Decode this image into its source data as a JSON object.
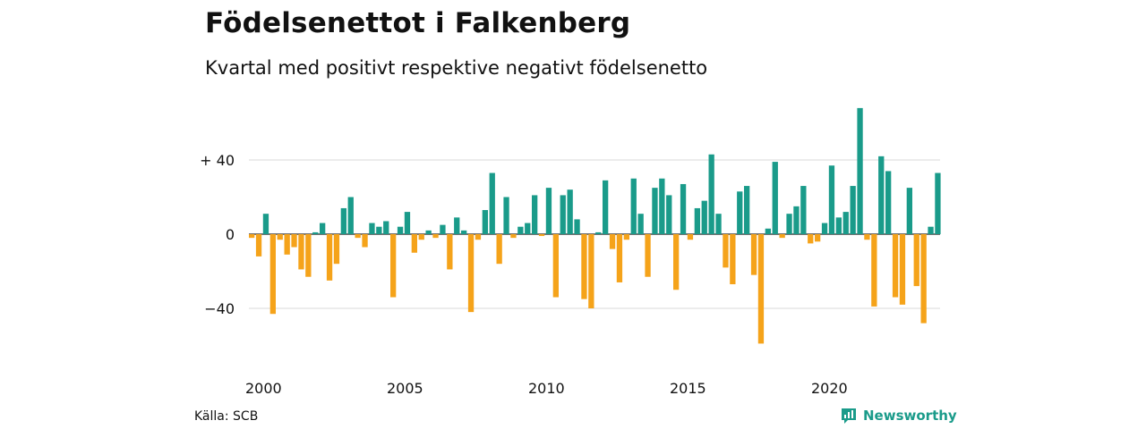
{
  "header": {
    "title": "Födelsenettot i Falkenberg",
    "subtitle": "Kvartal med positivt respektive negativt födelsenetto"
  },
  "footer": {
    "source": "Källa: SCB",
    "brand": "Newsworthy"
  },
  "colors": {
    "positive": "#1a9b8a",
    "negative": "#f5a31a",
    "brand": "#1a9b8a"
  },
  "chart_data": {
    "type": "bar",
    "title": "Födelsenettot i Falkenberg",
    "subtitle": "Kvartal med positivt respektive negativt födelsenetto",
    "x_start": 2000.0,
    "x_step": 0.25,
    "ylim": [
      -60,
      68
    ],
    "y_ticks": [
      40,
      0,
      -40
    ],
    "y_tick_labels": [
      "+ 40",
      "0",
      "−40"
    ],
    "x_ticks": [
      2000,
      2005,
      2010,
      2015,
      2020
    ],
    "x_tick_labels": [
      "2000",
      "2005",
      "2010",
      "2015",
      "2020"
    ],
    "grid": true,
    "values": [
      -2,
      -12,
      11,
      -43,
      -3,
      -11,
      -7,
      -19,
      -23,
      1,
      6,
      -25,
      -16,
      14,
      20,
      -2,
      -7,
      6,
      4,
      7,
      -34,
      4,
      12,
      -10,
      -3,
      2,
      -2,
      5,
      -19,
      9,
      2,
      -42,
      -3,
      13,
      33,
      -16,
      20,
      -2,
      4,
      6,
      21,
      -1,
      25,
      -34,
      21,
      24,
      8,
      -35,
      -40,
      1,
      29,
      -8,
      -26,
      -3,
      30,
      11,
      -23,
      25,
      30,
      21,
      -30,
      27,
      -3,
      14,
      18,
      43,
      11,
      -18,
      -27,
      23,
      26,
      -22,
      -59,
      3,
      39,
      -2,
      11,
      15,
      26,
      -5,
      -4,
      6,
      37,
      9,
      12,
      26,
      68,
      -3,
      -39,
      42,
      34,
      -34,
      -38,
      25,
      -28,
      -48,
      4,
      33
    ]
  }
}
